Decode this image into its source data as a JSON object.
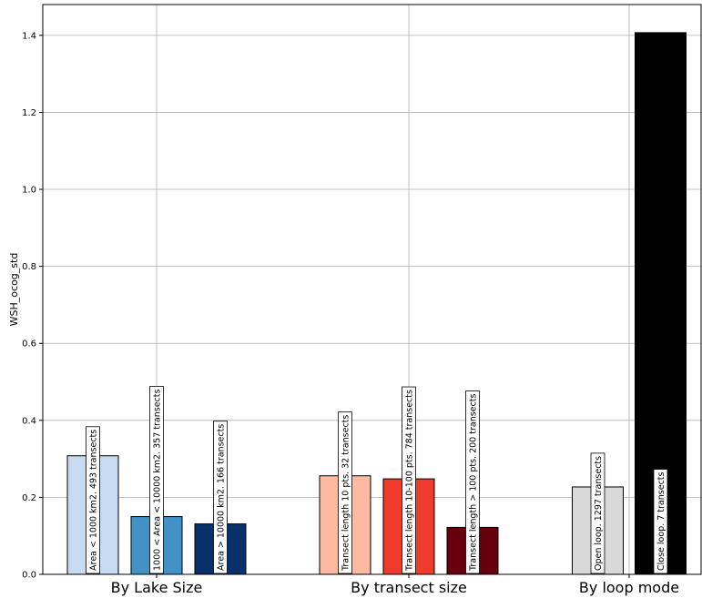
{
  "chart_data": {
    "type": "bar",
    "title": "",
    "xlabel": "",
    "ylabel": "WSH_ocog_std",
    "ylim": [
      0,
      1.48
    ],
    "yticks": [
      "0.0",
      "0.2",
      "0.4",
      "0.6",
      "0.8",
      "1.0",
      "1.2",
      "1.4"
    ],
    "grid": true,
    "groups": [
      {
        "name": "By Lake Size",
        "bars": [
          {
            "label": "Area < 1000 km2. 493 transects",
            "value": 0.308,
            "color": "#c6dbef"
          },
          {
            "label": "1000 < Area < 10000 km2. 357 transects",
            "value": 0.15,
            "color": "#4292c6"
          },
          {
            "label": "Area > 10000 km2. 166 transects",
            "value": 0.131,
            "color": "#08306b"
          }
        ]
      },
      {
        "name": "By transect size",
        "bars": [
          {
            "label": "Transect length 10 pts. 32 transects",
            "value": 0.256,
            "color": "#fcbba1"
          },
          {
            "label": "Transect length 10-100 pts. 784 transects",
            "value": 0.248,
            "color": "#ef3b2c"
          },
          {
            "label": "Transect length > 100 pts. 200 transects",
            "value": 0.122,
            "color": "#67000d"
          }
        ]
      },
      {
        "name": "By loop mode",
        "bars": [
          {
            "label": "Open loop. 1297 transects",
            "value": 0.227,
            "color": "#d9d9d9"
          },
          {
            "label": "Close loop. 7 transects",
            "value": 1.407,
            "color": "#000000"
          }
        ]
      }
    ]
  }
}
